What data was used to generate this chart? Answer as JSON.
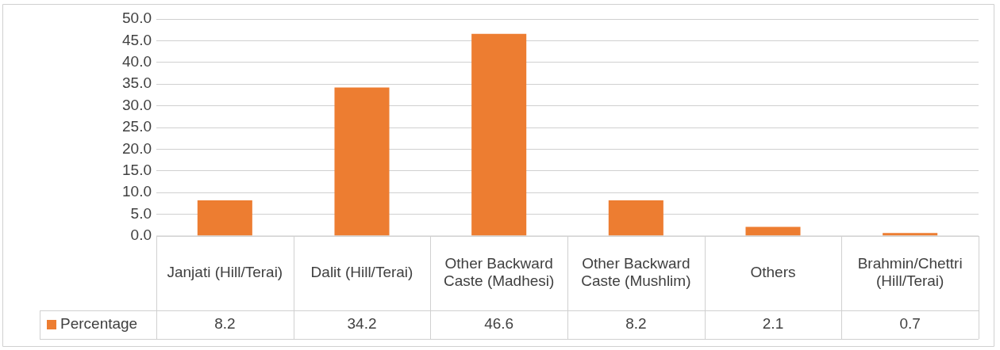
{
  "chart_data": {
    "type": "bar",
    "categories": [
      "Janjati (Hill/Terai)",
      "Dalit (Hill/Terai)",
      "Other Backward Caste (Madhesi)",
      "Other Backward Caste (Mushlim)",
      "Others",
      "Brahmin/Chettri (Hill/Terai)"
    ],
    "series": [
      {
        "name": "Percentage",
        "color": "#ed7d31",
        "values": [
          8.2,
          34.2,
          46.6,
          8.2,
          2.1,
          0.7
        ]
      }
    ],
    "ylim": [
      0,
      50
    ],
    "yticks": [
      {
        "value": 0,
        "label": "0.0"
      },
      {
        "value": 5,
        "label": "5.0"
      },
      {
        "value": 10,
        "label": "10.0"
      },
      {
        "value": 15,
        "label": "15.0"
      },
      {
        "value": 20,
        "label": "20.0"
      },
      {
        "value": 25,
        "label": "25.0"
      },
      {
        "value": 30,
        "label": "30.0"
      },
      {
        "value": 35,
        "label": "35.0"
      },
      {
        "value": 40,
        "label": "40.0"
      },
      {
        "value": 45,
        "label": "45.0"
      },
      {
        "value": 50,
        "label": "50.0"
      }
    ],
    "grid": "y",
    "legend": "bottom",
    "data_labels": true
  }
}
